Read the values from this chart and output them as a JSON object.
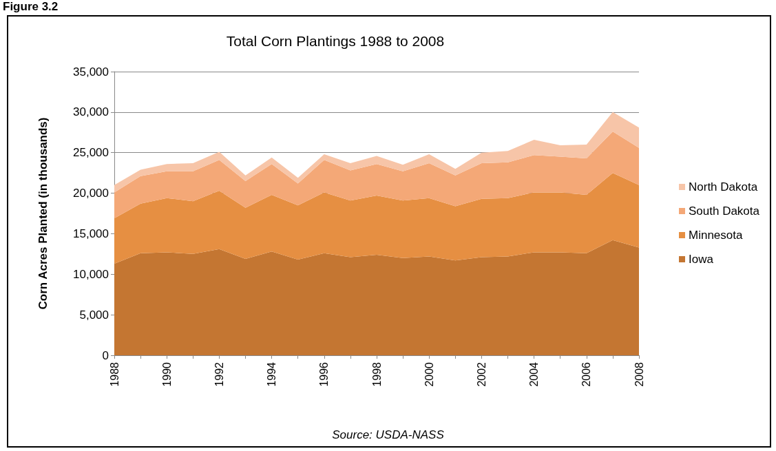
{
  "chart_data": {
    "type": "area",
    "stacked": true,
    "title": "Total Corn Plantings 1988 to 2008",
    "ylabel": "Corn Acres Planted (in thousands)",
    "annotations": [
      "Figure 3.2",
      "Source: USDA-NASS"
    ],
    "categories": [
      "1988",
      null,
      "1990",
      null,
      "1992",
      null,
      "1994",
      null,
      "1996",
      null,
      "1998",
      null,
      "2000",
      null,
      "2002",
      null,
      "2004",
      null,
      "2006",
      null,
      "2008"
    ],
    "series": [
      {
        "name": "Iowa",
        "color": "#c47632",
        "values": [
          11300,
          12600,
          12700,
          12500,
          13100,
          11900,
          12800,
          11800,
          12600,
          12100,
          12400,
          12000,
          12200,
          11700,
          12100,
          12200,
          12700,
          12700,
          12600,
          14200,
          13300
        ]
      },
      {
        "name": "Minnesota",
        "color": "#e68f42",
        "values": [
          5600,
          6100,
          6700,
          6500,
          7200,
          6300,
          7000,
          6700,
          7500,
          7000,
          7300,
          7100,
          7200,
          6700,
          7200,
          7200,
          7400,
          7400,
          7200,
          8300,
          7700
        ]
      },
      {
        "name": "South Dakota",
        "color": "#f4a877",
        "values": [
          3200,
          3400,
          3300,
          3700,
          3800,
          3300,
          3800,
          2700,
          4000,
          3700,
          3900,
          3600,
          4300,
          3800,
          4400,
          4400,
          4600,
          4400,
          4500,
          5100,
          4600
        ]
      },
      {
        "name": "North Dakota",
        "color": "#f7c5a8",
        "values": [
          900,
          800,
          900,
          1000,
          1000,
          700,
          800,
          700,
          700,
          900,
          1000,
          800,
          1100,
          800,
          1300,
          1400,
          1900,
          1400,
          1700,
          2400,
          2500
        ]
      }
    ],
    "ylim": [
      0,
      35000
    ],
    "yticks": [
      0,
      {
        "value": 5000,
        "label": "5,000"
      },
      {
        "value": 10000,
        "label": "10,000"
      },
      {
        "value": 15000,
        "label": "15,000"
      },
      {
        "value": 20000,
        "label": "20,000"
      },
      {
        "value": 25000,
        "label": "25,000"
      },
      {
        "value": 30000,
        "label": "30,000"
      },
      {
        "value": 35000,
        "label": "35,000"
      }
    ],
    "grid": "y",
    "legend": "right"
  }
}
